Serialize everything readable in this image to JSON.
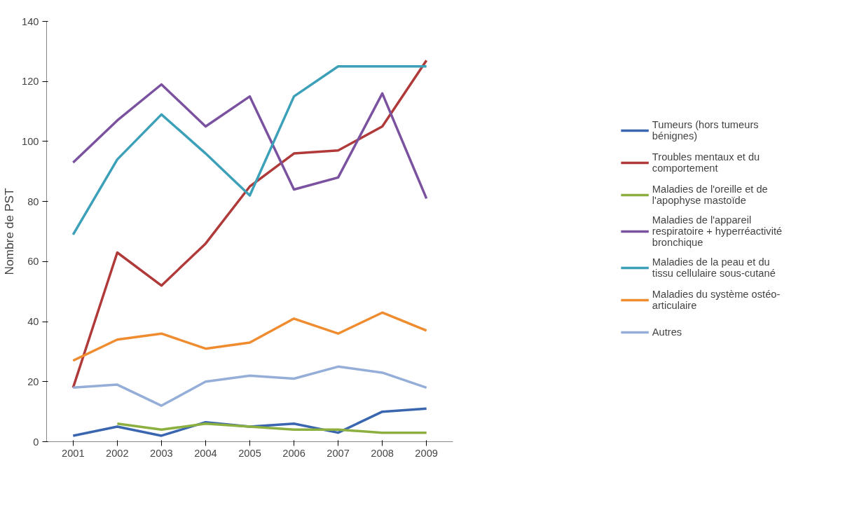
{
  "chart_data": {
    "type": "line",
    "ylabel": "Nombre de PST",
    "categories": [
      "2001",
      "2002",
      "2003",
      "2004",
      "2005",
      "2006",
      "2007",
      "2008",
      "2009"
    ],
    "ylim": [
      0,
      140
    ],
    "yticks": [
      0,
      20,
      40,
      60,
      80,
      100,
      120,
      140
    ],
    "grid": false,
    "legend": "right",
    "marker": "none",
    "line_style": "solid",
    "series": [
      {
        "name": "Tumeurs (hors tumeurs bénignes)",
        "color": "#3a66b0",
        "values": [
          2,
          5,
          2,
          6.5,
          5,
          6,
          3,
          10,
          11
        ]
      },
      {
        "name": "Troubles mentaux et du comportement",
        "color": "#b03a3a",
        "values": [
          18,
          63,
          52,
          66,
          85,
          96,
          97,
          105,
          127
        ]
      },
      {
        "name": "Maladies de l'oreille et de l'apophyse mastoïde",
        "color": "#8cb040",
        "values": [
          null,
          6,
          4,
          6,
          5,
          4,
          4,
          3,
          3
        ]
      },
      {
        "name": "Maladies de l'appareil respiratoire + hyperréactivité bronchique",
        "color": "#7a52a0",
        "values": [
          93,
          107,
          119,
          105,
          115,
          84,
          88,
          116,
          81
        ]
      },
      {
        "name": "Maladies de la peau et du tissu cellulaire sous-cutané",
        "color": "#3ca0b8",
        "values": [
          69,
          94,
          109,
          96,
          82,
          115,
          125,
          125,
          125
        ]
      },
      {
        "name": "Maladies du système ostéo-articulaire",
        "color": "#f08c30",
        "values": [
          27,
          34,
          36,
          31,
          33,
          41,
          36,
          43,
          37
        ]
      },
      {
        "name": "Autres",
        "color": "#94aed8",
        "values": [
          18,
          19,
          12,
          20,
          22,
          21,
          25,
          23,
          18
        ]
      }
    ]
  }
}
